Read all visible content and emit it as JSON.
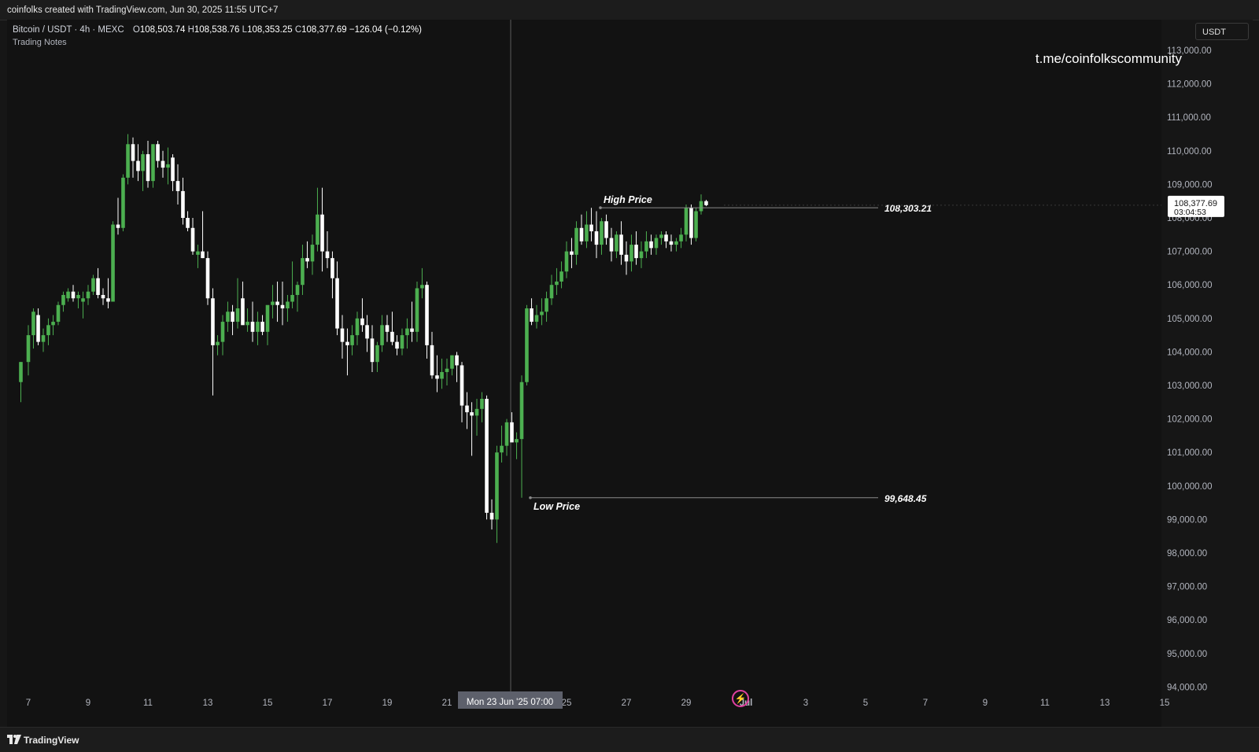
{
  "header": {
    "credit": "coinfolks created with TradingView.com, Jun 30, 2025 11:55 UTC+7"
  },
  "legend": {
    "symbol": "Bitcoin / USDT · 4h · MEXC",
    "open_label": "O",
    "open": "108,503.74",
    "high_label": "H",
    "high": "108,538.76",
    "low_label": "L",
    "low": "108,353.25",
    "close_label": "C",
    "close": "108,377.69",
    "change": "−126.04 (−0.12%)",
    "notes": "Trading Notes"
  },
  "watermark": "t.me/coinfolkscommunity",
  "currency_button": "USDT",
  "footer": {
    "brand": "TradingView"
  },
  "crosshair_label": "Mon 23 Jun '25   07:00",
  "last_price": {
    "value": "108,377.69",
    "countdown": "03:04:53"
  },
  "colors": {
    "background": "#121212",
    "up": "#4caf50",
    "down": "#ffffff",
    "grid": "none",
    "annotation_line": "#8a8a8a"
  },
  "chart_data": {
    "type": "candlestick",
    "title": "Bitcoin / USDT · 4h · MEXC",
    "xlabel": "",
    "ylabel": "",
    "grid": false,
    "ylim": [
      93800,
      113500
    ],
    "y_ticks": [
      "113,000.00",
      "112,000.00",
      "111,000.00",
      "110,000.00",
      "109,000.00",
      "108,000.00",
      "107,000.00",
      "106,000.00",
      "105,000.00",
      "104,000.00",
      "103,000.00",
      "102,000.00",
      "101,000.00",
      "100,000.00",
      "99,000.00",
      "98,000.00",
      "97,000.00",
      "96,000.00",
      "95,000.00",
      "94,000.00"
    ],
    "x_ticks": [
      "7",
      "9",
      "11",
      "13",
      "15",
      "17",
      "19",
      "21",
      "23",
      "25",
      "27",
      "29",
      "Jul",
      "3",
      "5",
      "7",
      "9",
      "11",
      "13",
      "15"
    ],
    "x_tick_dates": [
      7,
      9,
      11,
      13,
      15,
      17,
      19,
      21,
      23,
      25,
      27,
      29,
      31,
      33,
      35,
      37,
      39,
      41,
      43,
      45
    ],
    "candles_note": "days since Jun 6; values approximated from image (O,H,L,C)",
    "candles": [
      [
        6.75,
        103100,
        103700,
        102500,
        103700
      ],
      [
        7.0,
        103700,
        104800,
        103300,
        104500
      ],
      [
        7.17,
        104500,
        105300,
        104100,
        105200
      ],
      [
        7.33,
        105100,
        105300,
        104200,
        104300
      ],
      [
        7.5,
        104300,
        104700,
        104000,
        104500
      ],
      [
        7.67,
        104500,
        105000,
        104200,
        104800
      ],
      [
        7.83,
        104800,
        105100,
        104500,
        104900
      ],
      [
        8.0,
        104900,
        105500,
        104800,
        105400
      ],
      [
        8.17,
        105400,
        105800,
        105200,
        105700
      ],
      [
        8.33,
        105600,
        105900,
        105500,
        105800
      ],
      [
        8.5,
        105800,
        106000,
        105500,
        105600
      ],
      [
        8.67,
        105600,
        105800,
        105300,
        105700
      ],
      [
        8.83,
        105500,
        105800,
        105000,
        105600
      ],
      [
        9.0,
        105600,
        106000,
        105400,
        105800
      ],
      [
        9.17,
        105800,
        106300,
        105700,
        106200
      ],
      [
        9.33,
        106200,
        106500,
        105600,
        105700
      ],
      [
        9.5,
        105700,
        105900,
        105400,
        105600
      ],
      [
        9.67,
        105600,
        106200,
        105300,
        105500
      ],
      [
        9.83,
        105500,
        107900,
        105500,
        107800
      ],
      [
        10.0,
        107800,
        108600,
        107500,
        107700
      ],
      [
        10.17,
        107700,
        109300,
        107600,
        109200
      ],
      [
        10.33,
        109200,
        110500,
        109000,
        110200
      ],
      [
        10.5,
        110200,
        110400,
        109200,
        109700
      ],
      [
        10.67,
        109700,
        110200,
        109100,
        109400
      ],
      [
        10.83,
        109400,
        110000,
        108800,
        109900
      ],
      [
        11.0,
        109900,
        110300,
        108900,
        109100
      ],
      [
        11.17,
        109100,
        110200,
        108900,
        110200
      ],
      [
        11.33,
        110200,
        110300,
        109500,
        109700
      ],
      [
        11.5,
        109700,
        110000,
        109200,
        109500
      ],
      [
        11.67,
        109500,
        110100,
        109000,
        109600
      ],
      [
        11.83,
        109800,
        109900,
        108800,
        109100
      ],
      [
        12.0,
        109100,
        109600,
        108400,
        108800
      ],
      [
        12.17,
        108800,
        109200,
        107800,
        108000
      ],
      [
        12.33,
        108000,
        108200,
        107600,
        107700
      ],
      [
        12.5,
        107700,
        108000,
        106900,
        107000
      ],
      [
        12.67,
        106900,
        107200,
        106500,
        107000
      ],
      [
        12.83,
        107000,
        108200,
        106800,
        106800
      ],
      [
        13.0,
        106800,
        107000,
        105400,
        105600
      ],
      [
        13.17,
        105600,
        105900,
        102700,
        104200
      ],
      [
        13.33,
        104200,
        104500,
        103900,
        104300
      ],
      [
        13.5,
        104300,
        105100,
        103900,
        104900
      ],
      [
        13.67,
        104900,
        105500,
        104600,
        105200
      ],
      [
        13.83,
        105200,
        105400,
        104500,
        104900
      ],
      [
        14.0,
        104900,
        106200,
        104700,
        105300
      ],
      [
        14.17,
        105600,
        106100,
        104900,
        104800
      ],
      [
        14.33,
        104800,
        105300,
        104600,
        104900
      ],
      [
        14.5,
        104900,
        105500,
        104300,
        104600
      ],
      [
        14.67,
        104600,
        105200,
        104200,
        104900
      ],
      [
        14.83,
        104900,
        105100,
        104500,
        104600
      ],
      [
        15.0,
        104600,
        105300,
        104200,
        105400
      ],
      [
        15.17,
        105400,
        106000,
        105000,
        105500
      ],
      [
        15.33,
        105500,
        106100,
        104900,
        105400
      ],
      [
        15.5,
        105400,
        106100,
        104800,
        105300
      ],
      [
        15.67,
        105300,
        105700,
        104900,
        105500
      ],
      [
        15.83,
        105500,
        106700,
        105300,
        105700
      ],
      [
        16.0,
        105700,
        106100,
        105200,
        106000
      ],
      [
        16.17,
        106000,
        107200,
        105700,
        106800
      ],
      [
        16.33,
        106800,
        107300,
        106500,
        106700
      ],
      [
        16.5,
        106700,
        107500,
        106300,
        107200
      ],
      [
        16.67,
        107200,
        108900,
        107000,
        108100
      ],
      [
        16.83,
        108100,
        108900,
        106400,
        107000
      ],
      [
        17.0,
        107000,
        107600,
        106500,
        106800
      ],
      [
        17.17,
        106800,
        107000,
        105600,
        106200
      ],
      [
        17.33,
        106200,
        106700,
        104500,
        104700
      ],
      [
        17.5,
        104700,
        105100,
        103800,
        104300
      ],
      [
        17.67,
        104300,
        104700,
        103300,
        104200
      ],
      [
        17.83,
        104200,
        104800,
        103900,
        104500
      ],
      [
        18.0,
        104500,
        105200,
        104200,
        105000
      ],
      [
        18.17,
        105000,
        105600,
        104600,
        104800
      ],
      [
        18.33,
        104800,
        105100,
        104000,
        104400
      ],
      [
        18.5,
        104400,
        104800,
        103400,
        103700
      ],
      [
        18.67,
        103700,
        104300,
        103400,
        104200
      ],
      [
        18.83,
        104200,
        105100,
        104000,
        104800
      ],
      [
        19.0,
        104800,
        105100,
        104300,
        104600
      ],
      [
        19.17,
        104600,
        105200,
        104200,
        104300
      ],
      [
        19.33,
        104300,
        104500,
        103900,
        104100
      ],
      [
        19.5,
        104100,
        104700,
        103900,
        104500
      ],
      [
        19.67,
        104500,
        105000,
        104100,
        104700
      ],
      [
        19.83,
        104700,
        105500,
        104300,
        104600
      ],
      [
        20.0,
        104600,
        106100,
        104300,
        105900
      ],
      [
        20.17,
        105900,
        106500,
        105600,
        106000
      ],
      [
        20.33,
        106000,
        106100,
        103800,
        104200
      ],
      [
        20.5,
        104200,
        104600,
        103200,
        103300
      ],
      [
        20.67,
        103300,
        103900,
        102800,
        103200
      ],
      [
        20.83,
        103200,
        103800,
        102900,
        103400
      ],
      [
        21.0,
        103400,
        103800,
        103000,
        103500
      ],
      [
        21.17,
        103500,
        103900,
        103300,
        103900
      ],
      [
        21.33,
        103900,
        104000,
        103100,
        103600
      ],
      [
        21.5,
        103600,
        103700,
        101900,
        102400
      ],
      [
        21.67,
        102400,
        102800,
        101700,
        102200
      ],
      [
        21.83,
        102200,
        102500,
        100900,
        102100
      ],
      [
        22.0,
        102100,
        102600,
        101500,
        102300
      ],
      [
        22.17,
        102300,
        102800,
        101900,
        102600
      ],
      [
        22.33,
        102600,
        102700,
        99000,
        99200
      ],
      [
        22.5,
        99200,
        99600,
        98700,
        99000
      ],
      [
        22.67,
        99000,
        101200,
        98300,
        101000
      ],
      [
        22.83,
        101000,
        101800,
        100700,
        101200
      ],
      [
        23.0,
        101200,
        102000,
        100900,
        101900
      ],
      [
        23.17,
        101900,
        102200,
        101400,
        101300
      ],
      [
        23.33,
        101300,
        101600,
        100800,
        101400
      ],
      [
        23.5,
        101400,
        103300,
        99650,
        103100
      ],
      [
        23.67,
        103100,
        105400,
        103000,
        105300
      ],
      [
        23.83,
        105300,
        105600,
        104800,
        104900
      ],
      [
        24.0,
        104900,
        105400,
        104700,
        105100
      ],
      [
        24.17,
        105100,
        105600,
        104800,
        105200
      ],
      [
        24.33,
        105200,
        105800,
        104900,
        105600
      ],
      [
        24.5,
        105600,
        106300,
        105400,
        106000
      ],
      [
        24.67,
        106000,
        106500,
        105700,
        106100
      ],
      [
        24.83,
        106100,
        106700,
        105900,
        106400
      ],
      [
        25.0,
        106400,
        107300,
        106200,
        107000
      ],
      [
        25.17,
        107000,
        107400,
        106500,
        106900
      ],
      [
        25.33,
        106900,
        107900,
        106600,
        107700
      ],
      [
        25.5,
        107700,
        108100,
        107200,
        107300
      ],
      [
        25.67,
        107300,
        108200,
        107100,
        107800
      ],
      [
        25.83,
        107800,
        108300,
        107300,
        107600
      ],
      [
        26.0,
        107600,
        108200,
        106800,
        107200
      ],
      [
        26.17,
        107200,
        108000,
        106900,
        107900
      ],
      [
        26.33,
        107900,
        108100,
        107200,
        107400
      ],
      [
        26.5,
        107400,
        107700,
        106700,
        107000
      ],
      [
        26.67,
        107000,
        107600,
        106800,
        107500
      ],
      [
        26.83,
        107500,
        107900,
        106600,
        106900
      ],
      [
        27.0,
        106900,
        107300,
        106300,
        106700
      ],
      [
        27.17,
        106700,
        107500,
        106400,
        107200
      ],
      [
        27.33,
        107200,
        107600,
        106600,
        106800
      ],
      [
        27.5,
        106800,
        107300,
        106500,
        107000
      ],
      [
        27.67,
        107000,
        107600,
        106800,
        107300
      ],
      [
        27.83,
        107300,
        107500,
        106900,
        107100
      ],
      [
        28.0,
        107100,
        107500,
        106900,
        107400
      ],
      [
        28.17,
        107400,
        107600,
        107200,
        107500
      ],
      [
        28.33,
        107500,
        107600,
        107100,
        107300
      ],
      [
        28.5,
        107300,
        107500,
        107000,
        107200
      ],
      [
        28.67,
        107200,
        107400,
        107000,
        107300
      ],
      [
        28.83,
        107300,
        107700,
        107100,
        107500
      ],
      [
        29.0,
        107500,
        108400,
        107300,
        108300
      ],
      [
        29.17,
        108300,
        108400,
        107200,
        107400
      ],
      [
        29.33,
        107400,
        108300,
        107300,
        108200
      ],
      [
        29.5,
        108200,
        108700,
        108100,
        108500
      ],
      [
        29.67,
        108500,
        108540,
        108350,
        108380
      ]
    ],
    "annotations": [
      {
        "label": "High Price",
        "value": "108,303.21",
        "price": 108303.21
      },
      {
        "label": "Low Price",
        "value": "99,648.45",
        "price": 99648.45
      }
    ]
  }
}
